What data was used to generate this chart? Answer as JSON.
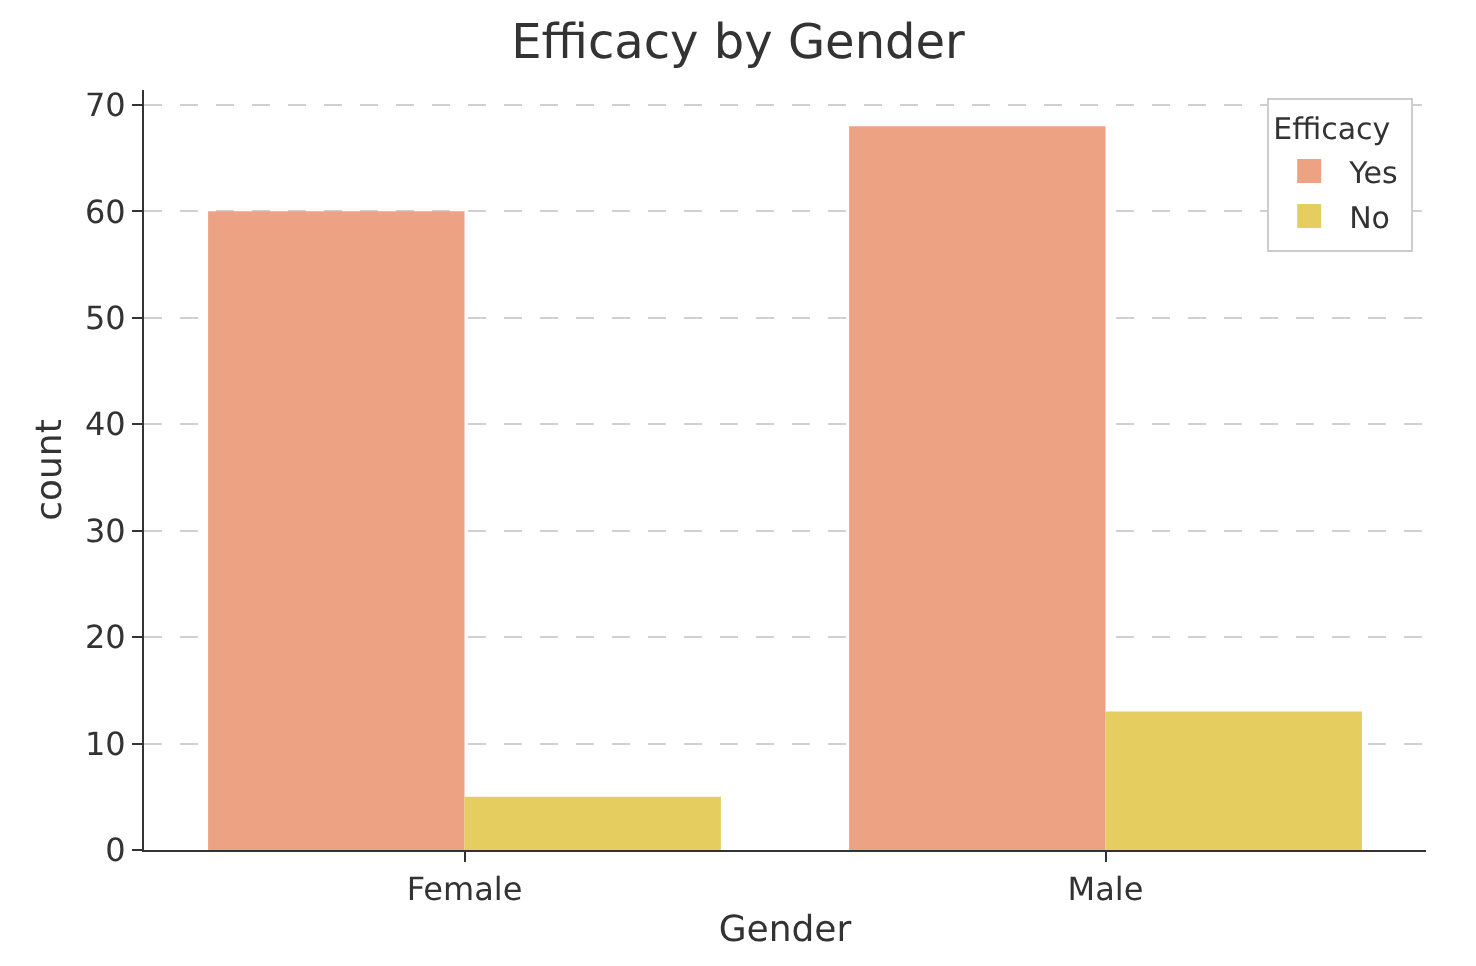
{
  "chart_data": {
    "type": "bar",
    "title": "Efficacy by Gender",
    "xlabel": "Gender",
    "ylabel": "count",
    "legend_title": "Efficacy",
    "categories": [
      "Female",
      "Male"
    ],
    "series": [
      {
        "name": "Yes",
        "color": "#eea284",
        "values": [
          60,
          68
        ]
      },
      {
        "name": "No",
        "color": "#e6cd5f",
        "values": [
          5,
          13
        ]
      }
    ],
    "ylim": [
      0,
      71.4
    ],
    "yticks": [
      0,
      10,
      20,
      30,
      40,
      50,
      60,
      70
    ],
    "grid": "y",
    "legend": "top right"
  }
}
